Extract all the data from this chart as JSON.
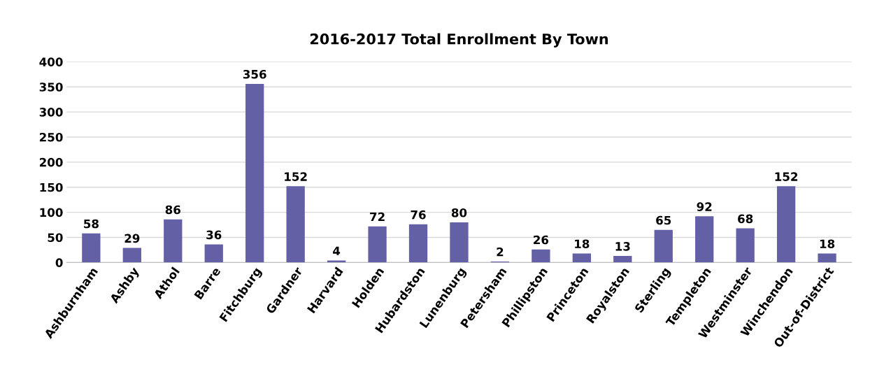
{
  "chart_data": {
    "type": "bar",
    "title": "2016-2017 Total Enrollment By Town",
    "categories": [
      "Ashburnham",
      "Ashby",
      "Athol",
      "Barre",
      "Fitchburg",
      "Gardner",
      "Harvard",
      "Holden",
      "Hubardston",
      "Lunenburg",
      "Petersham",
      "Phillipston",
      "Princeton",
      "Royalston",
      "Sterling",
      "Templeton",
      "Westminster",
      "Winchendon",
      "Out-of-District"
    ],
    "values": [
      58,
      29,
      86,
      36,
      356,
      152,
      4,
      72,
      76,
      80,
      2,
      26,
      18,
      13,
      65,
      92,
      68,
      152,
      18
    ],
    "color": "#6460a6",
    "ylim": [
      0,
      400
    ],
    "yticks": [
      0,
      50,
      100,
      150,
      200,
      250,
      300,
      350,
      400
    ],
    "grid": "y",
    "data_labels": true
  }
}
